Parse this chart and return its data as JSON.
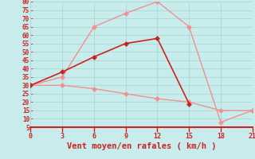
{
  "xlabel": "Vent moyen/en rafales ( km/h )",
  "bg_color": "#c8ecec",
  "grid_color": "#a8d8d8",
  "line_dark_x": [
    0,
    3,
    6,
    9,
    12,
    15
  ],
  "line_dark_y": [
    30,
    38,
    47,
    55,
    58,
    19
  ],
  "line_dark_color": "#cc2222",
  "line_light1_x": [
    0,
    3,
    6,
    9,
    12,
    15,
    18,
    21
  ],
  "line_light1_y": [
    30,
    35,
    65,
    73,
    80,
    65,
    8,
    15
  ],
  "line_light1_color": "#f09090",
  "line_light2_x": [
    0,
    3,
    6,
    9,
    12,
    15,
    18,
    21
  ],
  "line_light2_y": [
    30,
    30,
    28,
    25,
    22,
    20,
    15,
    15
  ],
  "line_light2_color": "#f09090",
  "xlim": [
    0,
    21
  ],
  "ylim": [
    5,
    80
  ],
  "xticks": [
    0,
    3,
    6,
    9,
    12,
    15,
    18,
    21
  ],
  "yticks": [
    5,
    10,
    15,
    20,
    25,
    30,
    35,
    40,
    45,
    50,
    55,
    60,
    65,
    70,
    75,
    80
  ],
  "tick_color": "#cc2222",
  "xlabel_color": "#cc2222",
  "xlabel_fontsize": 7.5,
  "marker_size": 3,
  "linewidth": 1.0
}
